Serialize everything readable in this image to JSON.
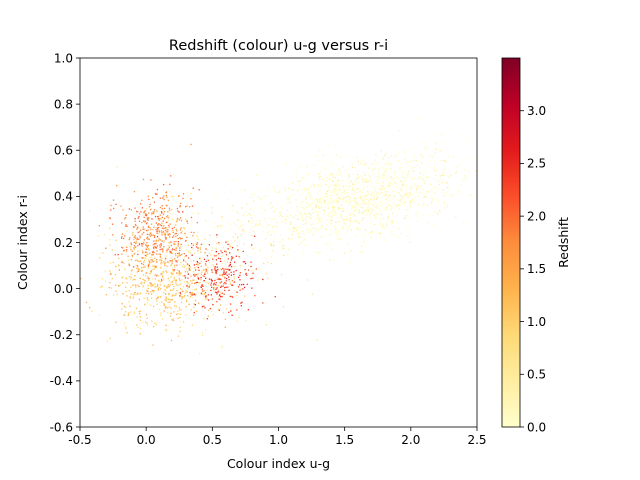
{
  "chart_data": {
    "type": "scatter",
    "title": "Redshift (colour) u-g versus r-i",
    "xlabel": "Colour index  u-g",
    "ylabel": "Colour index  r-i",
    "xlim": [
      -0.5,
      2.5
    ],
    "ylim": [
      -0.6,
      1.0
    ],
    "xticks": [
      "-0.5",
      "0.0",
      "0.5",
      "1.0",
      "1.5",
      "2.0",
      "2.5"
    ],
    "yticks": [
      "-0.6",
      "-0.4",
      "-0.2",
      "0.0",
      "0.2",
      "0.4",
      "0.6",
      "0.8",
      "1.0"
    ],
    "colorbar": {
      "label": "Redshift",
      "range": [
        0,
        3.5
      ],
      "ticks": [
        "0.0",
        "0.5",
        "1.0",
        "1.5",
        "2.0",
        "2.5",
        "3.0"
      ],
      "colormap": "YlOrRd",
      "stops": [
        "#ffffcc",
        "#ffeda0",
        "#fed976",
        "#feb24c",
        "#fd8d3c",
        "#fc4e2a",
        "#e31a1c",
        "#bd0026",
        "#800026"
      ]
    },
    "grid": false,
    "legend": "none",
    "clusters": [
      {
        "center_x": 1.55,
        "center_y": 0.38,
        "spread_x": 0.42,
        "spread_y": 0.09,
        "redshift": 0.1,
        "count": 1500
      },
      {
        "center_x": 0.12,
        "center_y": 0.02,
        "spread_x": 0.2,
        "spread_y": 0.09,
        "redshift": 1.1,
        "count": 500
      },
      {
        "center_x": 0.07,
        "center_y": 0.24,
        "spread_x": 0.14,
        "spread_y": 0.09,
        "redshift": 1.8,
        "count": 450
      },
      {
        "center_x": 0.55,
        "center_y": 0.06,
        "spread_x": 0.14,
        "spread_y": 0.07,
        "redshift": 2.3,
        "count": 260
      },
      {
        "center_x": 0.3,
        "center_y": 0.1,
        "spread_x": 0.35,
        "spread_y": 0.15,
        "redshift": 0.6,
        "count": 300
      }
    ]
  }
}
